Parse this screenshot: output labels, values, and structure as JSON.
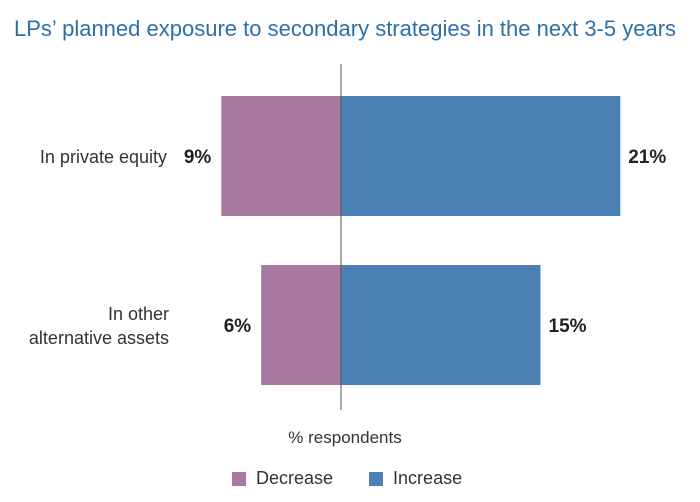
{
  "chart_data": {
    "type": "bar",
    "title": "LPs’ planned exposure to secondary strategies in the next 3-5 years",
    "xlabel": "% respondents",
    "categories": [
      [
        "In private equity"
      ],
      [
        "In other",
        "alternative assets"
      ]
    ],
    "series": [
      {
        "name": "Decrease",
        "values": [
          9,
          6
        ],
        "color": "#a8789f"
      },
      {
        "name": "Increase",
        "values": [
          21,
          15
        ],
        "color": "#4a80b4"
      }
    ],
    "value_labels": {
      "Decrease": [
        "9%",
        "6%"
      ],
      "Increase": [
        "21%",
        "15%"
      ]
    },
    "orientation": "horizontal-diverging",
    "legend_position": "bottom"
  }
}
